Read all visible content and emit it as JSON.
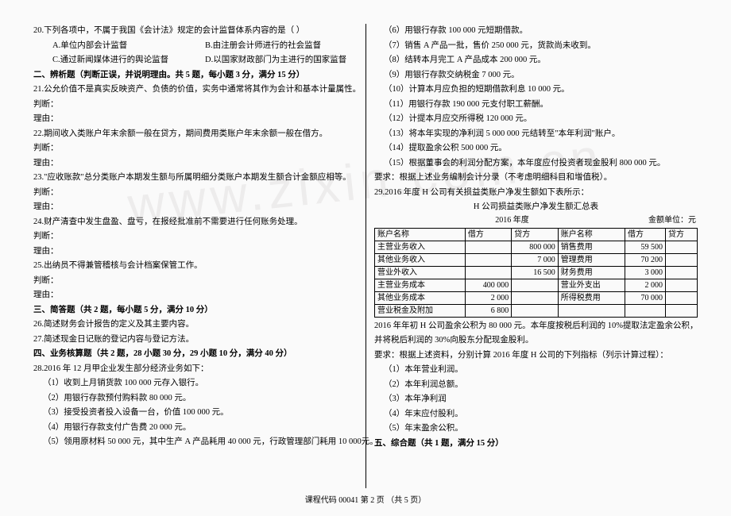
{
  "watermark": "www.zixin.com.cn",
  "left": {
    "q20": "20.下列各项中，不属于我国《会计法》规定的会计监督体系内容的是（  ）",
    "q20a": "A.单位内部会计监督",
    "q20b": "B.由注册会计师进行的社会监督",
    "q20c": "C.通过新闻媒体进行的舆论监督",
    "q20d": "D.以国家财政部门为主进行的国家监督",
    "sec2": "二、辨析题（判断正误，并说明理由。共 5 题，每小题 3 分，满分 15 分）",
    "q21": "21.公允价值不是真实反映资产、负债的价值，实务中通常将其作为会计和基本计量属性。",
    "judge": "判断：",
    "reason": "理由：",
    "q22": "22.期间收入类账户年末余额一般在贷方，期间费用类账户年末余额一般在借方。",
    "q23": "23.\"应收账款\"总分类账户本期发生额与所属明细分类账户本期发生额合计金额应相等。",
    "q24": "24.财产清查中发生盘盈、盘亏，在报经批准前不需要进行任何账务处理。",
    "q25": "25.出纳员不得兼管稽核与会计档案保管工作。",
    "sec3": "三、简答题（共 2 题，每小题 5 分，满分 10 分）",
    "q26": "26.简述财务会计报告的定义及其主要内容。",
    "q27": "27.简述现金日记账的登记内容与登记方法。",
    "sec4": "四、业务核算题（共 2 题，28 小题 30 分，29 小题 10 分，满分 40 分）",
    "q28": "28.2016 年 12 月甲企业发生部分经济业务如下：",
    "q28_1": "（1）收到上月销货款 100 000 元存入银行。",
    "q28_2": "（2）用银行存款预付购料款 80 000 元。",
    "q28_3": "（3）接受投资者投入设备一台，价值 100 000 元。",
    "q28_4": "（4）用银行存款支付广告费 20 000 元。",
    "q28_5": "（5）领用原材料 50 000 元，其中生产 A 产品耗用 40 000 元，行政管理部门耗用 10 000元。"
  },
  "right": {
    "q28_6": "（6）用银行存款 100 000 元短期借款。",
    "q28_7": "（7）销售 A 产品一批，售价 250 000 元，货款尚未收到。",
    "q28_8": "（8）结转本月完工 A 产品成本 200 000 元。",
    "q28_9": "（9）用银行存款交纳税金 7 000 元。",
    "q28_10": "（10）计算本月应负担的短期借款利息 10 000 元。",
    "q28_11": "（11）用银行存款 190 000 元支付职工薪酬。",
    "q28_12": "（12）计提本月应交所得税 120 000 元。",
    "q28_13": "（13）将本年实现的净利润 5 000 000 元结转至\"本年利润\"账户。",
    "q28_14": "（14）提取盈余公积 500 000 元。",
    "q28_15": "（15）根据董事会的利润分配方案，本年度应付投资者现金股利 800 000 元。",
    "q28_req": "要求：根据上述业务编制会计分录（不考虑明细科目和增值税）。",
    "q29": "29.2016 年度 H 公司有关损益类账户净发生额如下表所示：",
    "tbl_title": "H 公司损益类账户净发生额汇总表",
    "tbl_year": "2016 年度",
    "tbl_unit": "金额单位：元",
    "cols": [
      "账户名称",
      "借方",
      "贷方",
      "账户名称",
      "借方",
      "贷方"
    ],
    "rows": [
      [
        "主营业务收入",
        "",
        "800 000",
        "销售费用",
        "59 500",
        ""
      ],
      [
        "其他业务收入",
        "",
        "7 000",
        "管理费用",
        "70 200",
        ""
      ],
      [
        "营业外收入",
        "",
        "16 500",
        "财务费用",
        "3 000",
        ""
      ],
      [
        "主营业务成本",
        "400 000",
        "",
        "营业外支出",
        "2 000",
        ""
      ],
      [
        "其他业务成本",
        "2 000",
        "",
        "所得税费用",
        "70 000",
        ""
      ],
      [
        "营业税金及附加",
        "6 800",
        "",
        "",
        "",
        ""
      ]
    ],
    "q29_txt1": "2016 年年初 H 公司盈余公积为 80 000 元。本年度按税后利润的 10%提取法定盈余公积，",
    "q29_txt2": "并将税后利润的 30%向股东分配现金股利。",
    "q29_req": "要求：根据上述资料，分别计算 2016 年度 H 公司的下列指标（列示计算过程）：",
    "q29_1": "（1）本年营业利润。",
    "q29_2": "（2）本年利润总额。",
    "q29_3": "（3）本年净利润",
    "q29_4": "（4）年末应付股利。",
    "q29_5": "（5）年末盈余公积。",
    "sec5": "五、综合题（共 1 题，满分 15 分）"
  },
  "footer": "课程代码  00041  第  2  页 （共 5 页）"
}
